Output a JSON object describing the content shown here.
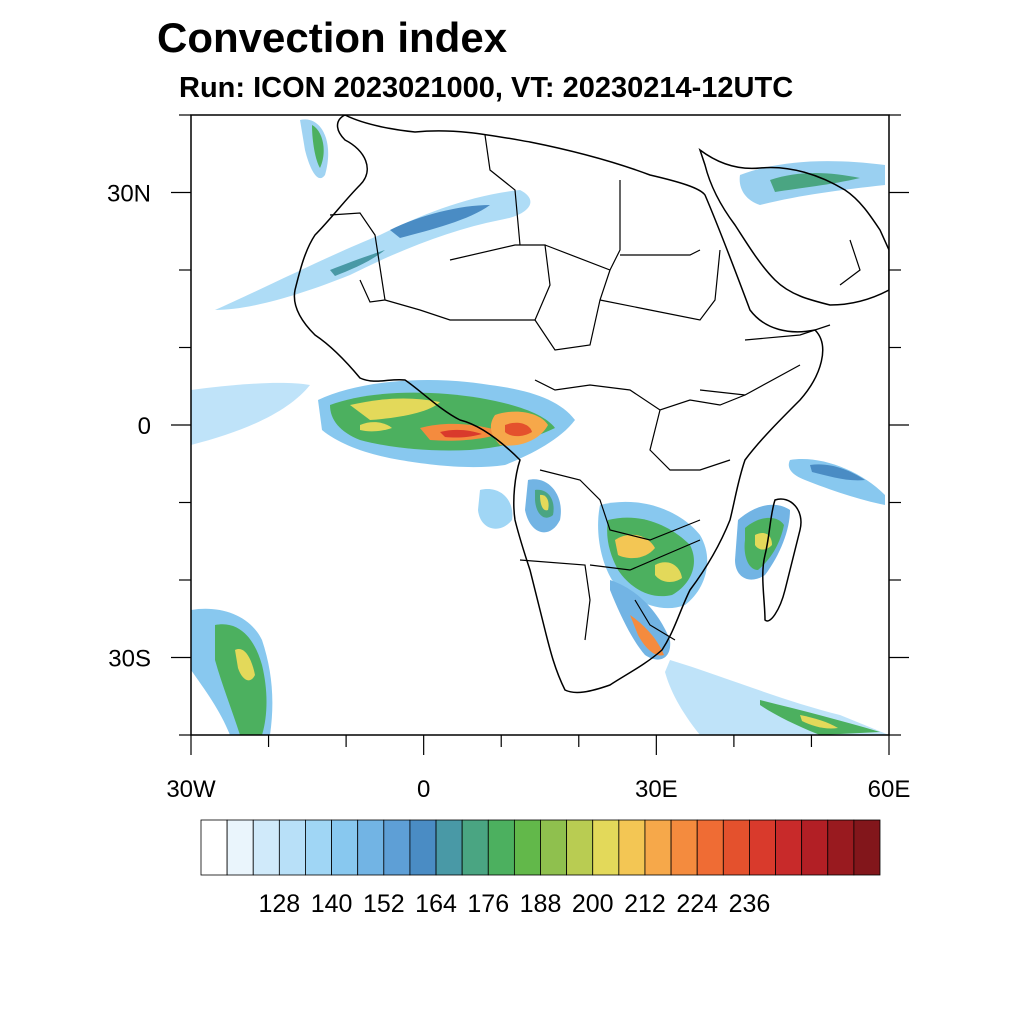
{
  "header": {
    "title": "Convection index",
    "subtitle": "Run: ICON 2023021000,  VT: 20230214-12UTC"
  },
  "map": {
    "region": "Africa",
    "lon_range": [
      -30,
      60
    ],
    "lat_range": [
      -40,
      40
    ],
    "lat_ticks": [
      {
        "value": 30,
        "label": "30N"
      },
      {
        "value": 0,
        "label": "0"
      },
      {
        "value": -30,
        "label": "30S"
      }
    ],
    "lon_ticks": [
      {
        "value": -30,
        "label": "30W"
      },
      {
        "value": 0,
        "label": "0"
      },
      {
        "value": 30,
        "label": "30E"
      },
      {
        "value": 60,
        "label": "60E"
      }
    ]
  },
  "colorbar": {
    "colors": [
      "#ffffff",
      "#eaf5fc",
      "#d0eafa",
      "#b8e0f8",
      "#a0d6f5",
      "#88c8ef",
      "#72b4e4",
      "#5e9fd6",
      "#4a8cc4",
      "#4999a6",
      "#4aa582",
      "#4cb05f",
      "#62b84a",
      "#8fc04e",
      "#b9cc52",
      "#e3d95a",
      "#f3c654",
      "#f6a84a",
      "#f48b3e",
      "#ef6c34",
      "#e4512d",
      "#d93a2c",
      "#c82a2a",
      "#b21f25",
      "#991a1f",
      "#82161b"
    ],
    "tick_labels": [
      "128",
      "140",
      "152",
      "164",
      "176",
      "188",
      "200",
      "212",
      "224",
      "236"
    ]
  }
}
